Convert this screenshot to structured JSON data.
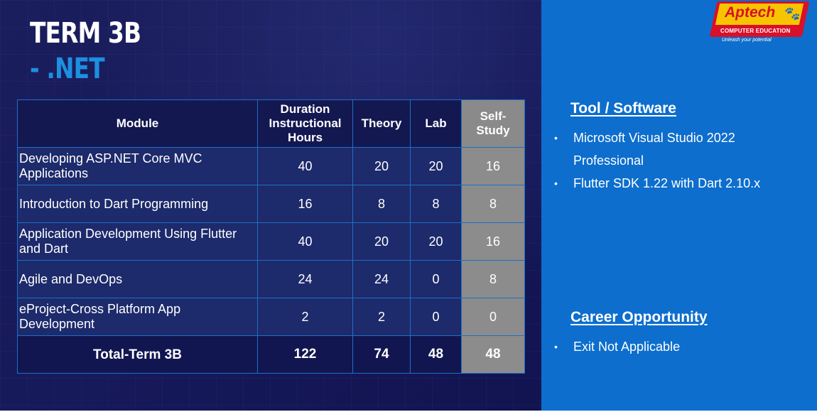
{
  "title": {
    "line1": "TERM 3B",
    "line2": "- .NET"
  },
  "table": {
    "headers": {
      "module": "Module",
      "duration_line1": "Duration",
      "duration_line2": "Instructional",
      "duration_line3": "Hours",
      "theory": "Theory",
      "lab": "Lab",
      "self_study": "Self-Study"
    },
    "rows": [
      {
        "module": "Developing ASP.NET Core MVC Applications",
        "duration": "40",
        "theory": "20",
        "lab": "20",
        "self_study": "16"
      },
      {
        "module": "Introduction to Dart Programming",
        "duration": "16",
        "theory": "8",
        "lab": "8",
        "self_study": "8"
      },
      {
        "module": "Application Development Using Flutter and Dart",
        "duration": "40",
        "theory": "20",
        "lab": "20",
        "self_study": "16"
      },
      {
        "module": "Agile and DevOps",
        "duration": "24",
        "theory": "24",
        "lab": "0",
        "self_study": "8"
      },
      {
        "module": "eProject-Cross Platform App Development",
        "duration": "2",
        "theory": "2",
        "lab": "0",
        "self_study": "0"
      }
    ],
    "total": {
      "module": "Total-Term 3B",
      "duration": "122",
      "theory": "74",
      "lab": "48",
      "self_study": "48"
    }
  },
  "tools": {
    "heading": "Tool / Software",
    "items": [
      "Microsoft Visual Studio 2022",
      "Professional",
      "Flutter SDK 1.22 with Dart 2.10.x"
    ]
  },
  "career": {
    "heading": "Career Opportunity",
    "items": [
      "Exit Not Applicable"
    ]
  },
  "logo": {
    "brand": "Aptech",
    "subtitle": "COMPUTER EDUCATION",
    "tagline": "Unleash your potential"
  },
  "colors": {
    "left_bg": "#16195a",
    "right_bg": "#0d6ecd",
    "accent_blue": "#1d8fe0",
    "self_study_grey": "#8c8c8c",
    "logo_red": "#d8102a",
    "logo_yellow": "#f7c400"
  },
  "icons": {
    "bullet": "bullet-dot-icon",
    "paw": "paw-icon"
  }
}
